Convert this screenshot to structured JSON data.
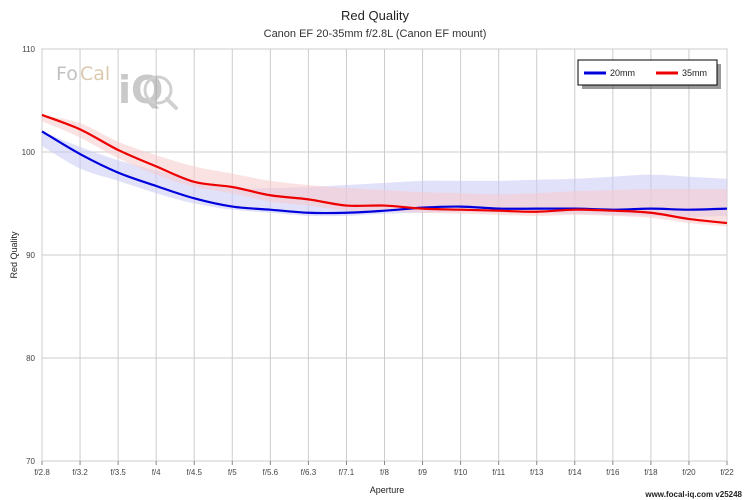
{
  "chart_data": {
    "type": "line",
    "title": "Red Quality",
    "subtitle": "Canon EF 20-35mm f/2.8L (Canon EF mount)",
    "xlabel": "Aperture",
    "ylabel": "Red Quality",
    "categories": [
      "f/2.8",
      "f/3.2",
      "f/3.5",
      "f/4",
      "f/4.5",
      "f/5",
      "f/5.6",
      "f/6.3",
      "f/7.1",
      "f/8",
      "f/9",
      "f/10",
      "f/11",
      "f/13",
      "f/14",
      "f/16",
      "f/18",
      "f/20",
      "f/22"
    ],
    "ylim": [
      70,
      110
    ],
    "yticks": [
      70,
      80,
      90,
      100,
      110
    ],
    "grid": true,
    "legend_position": "top-right",
    "series": [
      {
        "name": "20mm",
        "color": "#0000dd",
        "band_color": "#c8c8f5",
        "values": [
          102.0,
          99.8,
          98.0,
          96.7,
          95.5,
          94.7,
          94.4,
          94.1,
          94.1,
          94.3,
          94.6,
          94.7,
          94.5,
          94.5,
          94.5,
          94.4,
          94.5,
          94.4,
          94.5
        ],
        "upper": [
          102.0,
          100.5,
          99.2,
          98.2,
          97.2,
          96.5,
          96.5,
          96.6,
          96.8,
          97.0,
          97.2,
          97.2,
          97.2,
          97.3,
          97.4,
          97.6,
          97.8,
          97.6,
          97.4
        ],
        "lower": [
          100.6,
          98.4,
          97.2,
          96.0,
          95.0,
          94.4,
          94.1,
          93.8,
          93.8,
          94.0,
          94.1,
          94.2,
          94.1,
          94.1,
          94.0,
          93.9,
          93.8,
          93.7,
          93.8
        ]
      },
      {
        "name": "35mm",
        "color": "#ee0000",
        "band_color": "#f8caca",
        "values": [
          103.6,
          102.2,
          100.2,
          98.6,
          97.1,
          96.6,
          95.8,
          95.4,
          94.8,
          94.8,
          94.5,
          94.4,
          94.3,
          94.2,
          94.4,
          94.3,
          94.1,
          93.5,
          93.1
        ],
        "upper": [
          103.6,
          102.8,
          101.0,
          99.7,
          98.6,
          97.9,
          97.2,
          96.8,
          96.5,
          96.3,
          96.1,
          96.0,
          95.9,
          96.0,
          96.2,
          96.3,
          96.4,
          96.4,
          96.4
        ],
        "lower": [
          103.0,
          101.4,
          99.4,
          97.8,
          96.6,
          96.0,
          95.2,
          94.8,
          94.3,
          94.3,
          94.1,
          94.0,
          93.9,
          93.8,
          93.9,
          93.8,
          93.6,
          93.1,
          92.8
        ]
      }
    ]
  },
  "footer": {
    "text": "www.focal-iq.com  v25248"
  },
  "logo": {
    "text_fo": "Fo",
    "text_cal": "Cal",
    "text_iq": "iQ",
    "icon": "magnifier-icon"
  }
}
